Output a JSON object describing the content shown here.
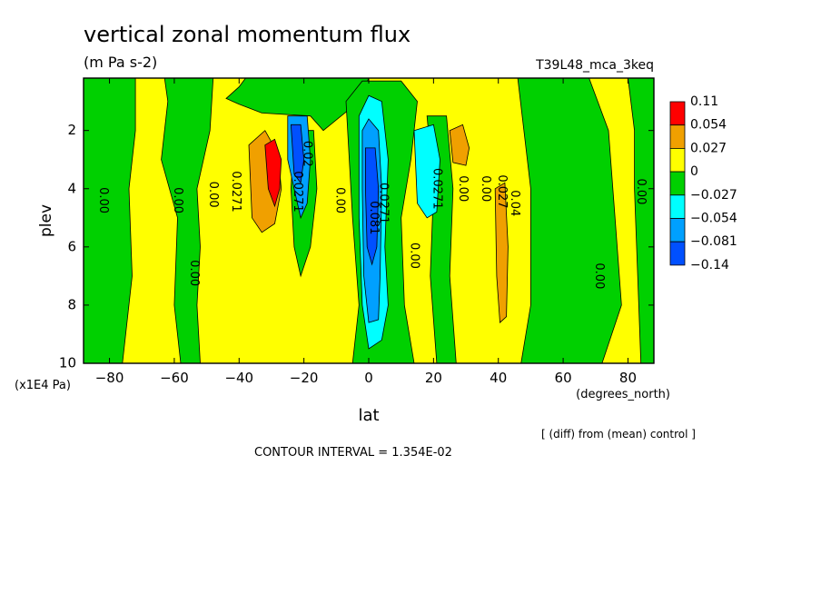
{
  "title": "vertical zonal momentum flux",
  "units": "(m Pa s-2)",
  "run_label": "T39L48_mca_3keq",
  "footer_diff": "[ (diff) from (mean) control ]",
  "contour_interval": "CONTOUR INTERVAL = 1.354E-02",
  "chart_data": {
    "type": "heatmap",
    "xlabel": "lat",
    "x_units": "(degrees_north)",
    "ylabel": "plev",
    "y_units": "(x1E4 Pa)",
    "xlim": [
      -88,
      88
    ],
    "ylim": [
      10,
      0.2
    ],
    "x_ticks": [
      -80,
      -60,
      -40,
      -20,
      0,
      20,
      40,
      60,
      80
    ],
    "y_ticks": [
      2,
      4,
      6,
      8,
      10
    ],
    "legend": {
      "placement": "right",
      "labels": [
        "0.11",
        "0.054",
        "0.027",
        "0",
        "−0.027",
        "−0.054",
        "−0.081",
        "−0.14"
      ],
      "colors": [
        "#ff0000",
        "#f0a000",
        "#ffff00",
        "#00d000",
        "#00ffff",
        "#00a0ff",
        "#0050ff"
      ]
    },
    "background_color": "#ffff00",
    "regions": [
      {
        "color": "#00d000",
        "path": [
          [
            -88,
            0.2
          ],
          [
            -72,
            0.2
          ],
          [
            -72,
            2
          ],
          [
            -74,
            4
          ],
          [
            -73,
            7
          ],
          [
            -76,
            10
          ],
          [
            -88,
            10
          ]
        ]
      },
      {
        "color": "#00d000",
        "path": [
          [
            -63,
            0.2
          ],
          [
            -48,
            0.2
          ],
          [
            -49,
            2
          ],
          [
            -53,
            4
          ],
          [
            -52,
            6
          ],
          [
            -53,
            8
          ],
          [
            -52,
            10
          ],
          [
            -58,
            10
          ],
          [
            -60,
            8
          ],
          [
            -59,
            5
          ],
          [
            -64,
            3
          ],
          [
            -62,
            1
          ]
        ]
      },
      {
        "color": "#00d000",
        "path": [
          [
            -38,
            0.2
          ],
          [
            0,
            0.2
          ],
          [
            -3,
            1
          ],
          [
            -14,
            2
          ],
          [
            -18,
            1.5
          ],
          [
            -33,
            1.4
          ],
          [
            -40,
            1.1
          ],
          [
            -44,
            0.9
          ],
          [
            -40,
            0.5
          ]
        ]
      },
      {
        "color": "#00d000",
        "path": [
          [
            -23,
            2
          ],
          [
            -17,
            2
          ],
          [
            -16,
            4
          ],
          [
            -18,
            6
          ],
          [
            -21,
            7
          ],
          [
            -23,
            6
          ],
          [
            -24,
            4
          ]
        ]
      },
      {
        "color": "#00d000",
        "path": [
          [
            -7,
            1
          ],
          [
            -2,
            0.3
          ],
          [
            10,
            0.3
          ],
          [
            15,
            1
          ],
          [
            13,
            3
          ],
          [
            10,
            5
          ],
          [
            11,
            8
          ],
          [
            14,
            10
          ],
          [
            -5,
            10
          ],
          [
            -3,
            8
          ],
          [
            -5,
            5
          ],
          [
            -6,
            3
          ]
        ]
      },
      {
        "color": "#00d000",
        "path": [
          [
            18,
            1.5
          ],
          [
            24,
            1.5
          ],
          [
            26,
            4
          ],
          [
            25,
            7
          ],
          [
            27,
            10
          ],
          [
            21,
            10
          ],
          [
            19,
            7
          ],
          [
            20,
            4
          ]
        ]
      },
      {
        "color": "#00d000",
        "path": [
          [
            46,
            0.2
          ],
          [
            68,
            0.2
          ],
          [
            74,
            2
          ],
          [
            76,
            5
          ],
          [
            78,
            8
          ],
          [
            72,
            10
          ],
          [
            47,
            10
          ],
          [
            50,
            8
          ],
          [
            50,
            4
          ]
        ]
      },
      {
        "color": "#00d000",
        "path": [
          [
            80,
            0.2
          ],
          [
            88,
            0.2
          ],
          [
            88,
            10
          ],
          [
            84,
            10
          ],
          [
            83,
            7
          ],
          [
            82,
            4
          ],
          [
            82,
            2
          ]
        ]
      },
      {
        "color": "#00a0ff",
        "path": [
          [
            -25,
            1.5
          ],
          [
            -19,
            1.5
          ],
          [
            -18,
            3
          ],
          [
            -19,
            4.5
          ],
          [
            -21,
            5
          ],
          [
            -23,
            4
          ],
          [
            -25,
            3
          ]
        ]
      },
      {
        "color": "#0050ff",
        "path": [
          [
            -24,
            1.8
          ],
          [
            -21,
            1.8
          ],
          [
            -20,
            3
          ],
          [
            -21,
            3.8
          ],
          [
            -23,
            3.5
          ]
        ]
      },
      {
        "color": "#00ffff",
        "path": [
          [
            -3,
            1.5
          ],
          [
            0,
            0.8
          ],
          [
            4,
            1
          ],
          [
            6,
            3
          ],
          [
            5,
            6
          ],
          [
            6,
            8
          ],
          [
            4,
            9.2
          ],
          [
            0,
            9.5
          ],
          [
            -2,
            8
          ],
          [
            -3,
            5
          ]
        ]
      },
      {
        "color": "#00a0ff",
        "path": [
          [
            -2,
            2
          ],
          [
            0,
            1.6
          ],
          [
            3,
            2
          ],
          [
            4,
            4
          ],
          [
            3.5,
            7
          ],
          [
            3,
            8.5
          ],
          [
            0,
            8.6
          ],
          [
            -1.5,
            7
          ],
          [
            -2,
            4
          ]
        ]
      },
      {
        "color": "#0050ff",
        "path": [
          [
            -1,
            2.6
          ],
          [
            2,
            2.6
          ],
          [
            3,
            4
          ],
          [
            2.5,
            6
          ],
          [
            1,
            6.6
          ],
          [
            -0.5,
            6
          ],
          [
            -1,
            4
          ]
        ]
      },
      {
        "color": "#00ffff",
        "path": [
          [
            14,
            2
          ],
          [
            20,
            1.8
          ],
          [
            22,
            3
          ],
          [
            21,
            4.8
          ],
          [
            18,
            5
          ],
          [
            15,
            4.5
          ]
        ]
      },
      {
        "color": "#f0a000",
        "path": [
          [
            -37,
            2.5
          ],
          [
            -32,
            2
          ],
          [
            -28,
            2.8
          ],
          [
            -27,
            4
          ],
          [
            -29,
            5.2
          ],
          [
            -33,
            5.5
          ],
          [
            -36,
            5
          ]
        ]
      },
      {
        "color": "#ff0000",
        "path": [
          [
            -32,
            2.5
          ],
          [
            -29,
            2.3
          ],
          [
            -27,
            3
          ],
          [
            -27.5,
            4
          ],
          [
            -29,
            4.6
          ],
          [
            -31,
            4
          ]
        ]
      },
      {
        "color": "#f0a000",
        "path": [
          [
            25,
            2
          ],
          [
            29,
            1.8
          ],
          [
            31,
            2.6
          ],
          [
            30,
            3.2
          ],
          [
            26,
            3.1
          ]
        ]
      },
      {
        "color": "#f0a000",
        "path": [
          [
            39,
            4
          ],
          [
            42,
            3.8
          ],
          [
            43,
            6
          ],
          [
            42.5,
            8.4
          ],
          [
            40.5,
            8.6
          ],
          [
            39.5,
            7
          ]
        ]
      }
    ],
    "contour_labels": [
      {
        "lat": -82,
        "plev": 4.4,
        "text": "0.00"
      },
      {
        "lat": -59,
        "plev": 4.4,
        "text": "0.00"
      },
      {
        "lat": -48,
        "plev": 4.2,
        "text": "0.00"
      },
      {
        "lat": -41,
        "plev": 4.1,
        "text": "0.0271"
      },
      {
        "lat": -54,
        "plev": 6.9,
        "text": "0.00"
      },
      {
        "lat": -22,
        "plev": 4.1,
        "text": "0.0271"
      },
      {
        "lat": -19,
        "plev": 2.8,
        "text": "0.02"
      },
      {
        "lat": -9,
        "plev": 4.4,
        "text": "0.00"
      },
      {
        "lat": 1.5,
        "plev": 5,
        "text": "0.081"
      },
      {
        "lat": 4.5,
        "plev": 4.5,
        "text": "0.0271"
      },
      {
        "lat": 14,
        "plev": 6.3,
        "text": "0.00"
      },
      {
        "lat": 21,
        "plev": 4,
        "text": "0.0271"
      },
      {
        "lat": 29,
        "plev": 4,
        "text": "0.00"
      },
      {
        "lat": 36,
        "plev": 4,
        "text": "0.00"
      },
      {
        "lat": 41,
        "plev": 4.1,
        "text": "0.027"
      },
      {
        "lat": 45,
        "plev": 4.5,
        "text": "0.04"
      },
      {
        "lat": 71,
        "plev": 7,
        "text": "0.00"
      },
      {
        "lat": 84,
        "plev": 4.1,
        "text": "0.00"
      }
    ]
  }
}
